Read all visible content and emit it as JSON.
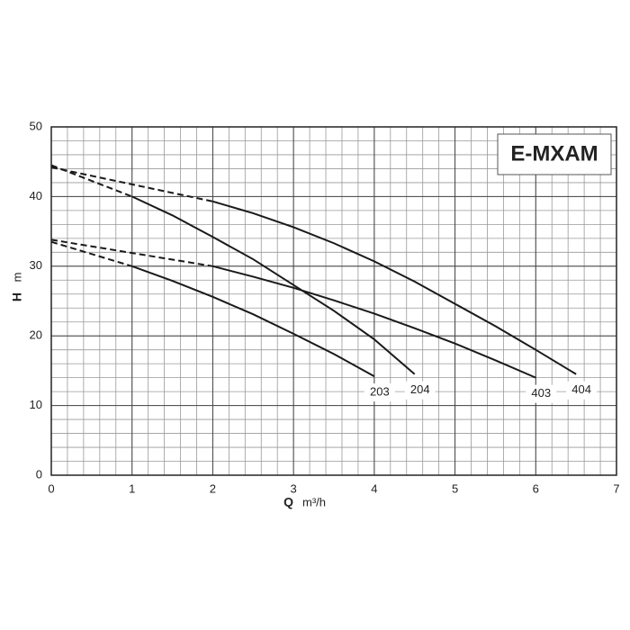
{
  "chart_data": {
    "type": "line",
    "title": "E-MXAM",
    "xlabel": {
      "symbol": "Q",
      "unit": "m³/h"
    },
    "ylabel": {
      "symbol": "H",
      "unit": "m"
    },
    "xlim": [
      0,
      7
    ],
    "xticks": [
      0,
      1,
      2,
      3,
      4,
      5,
      6,
      7
    ],
    "ylim": [
      0,
      50
    ],
    "yticks": [
      0,
      10,
      20,
      30,
      40,
      50
    ],
    "grid": {
      "x_minor_step": 0.2,
      "y_minor_step": 2
    },
    "color": "#1a1a1a",
    "series": [
      {
        "name": "203",
        "dashed_to_x": 1,
        "x": [
          0,
          1,
          1.5,
          2,
          2.5,
          3,
          3.5,
          4
        ],
        "values": [
          33.5,
          30,
          27.9,
          25.6,
          23.1,
          20.3,
          17.4,
          14.2
        ]
      },
      {
        "name": "204",
        "dashed_to_x": 1,
        "x": [
          0,
          1,
          1.5,
          2,
          2.5,
          3,
          3.5,
          4,
          4.5
        ],
        "values": [
          44.5,
          40,
          37.3,
          34.2,
          31,
          27.3,
          23.6,
          19.5,
          14.5
        ]
      },
      {
        "name": "403",
        "dashed_to_x": 2,
        "x": [
          0,
          2,
          2.5,
          3,
          3.5,
          4,
          4.5,
          5,
          5.5,
          6
        ],
        "values": [
          33.8,
          30,
          28.5,
          26.9,
          25.1,
          23.2,
          21.1,
          18.9,
          16.5,
          14
        ]
      },
      {
        "name": "404",
        "dashed_to_x": 2,
        "x": [
          0,
          2,
          2.5,
          3,
          3.5,
          4,
          4.5,
          5,
          5.5,
          6,
          6.5
        ],
        "values": [
          44.2,
          39.3,
          37.6,
          35.6,
          33.3,
          30.7,
          27.8,
          24.6,
          21.4,
          18,
          14.5
        ]
      }
    ]
  }
}
